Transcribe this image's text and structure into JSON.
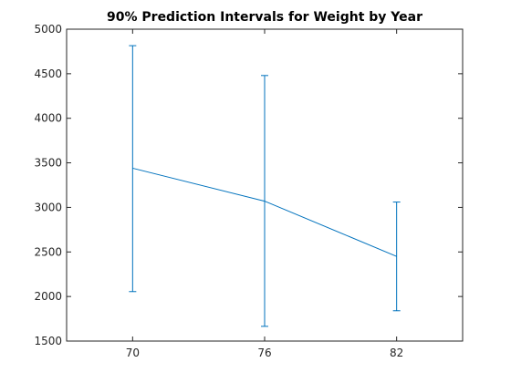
{
  "chart_data": {
    "type": "errorbar",
    "title": "90% Prediction Intervals for Weight by Year",
    "xlabel": "",
    "ylabel": "",
    "x_categories": [
      "70",
      "76",
      "82"
    ],
    "x_values": [
      70,
      76,
      82
    ],
    "xlim": [
      67,
      85
    ],
    "ylim": [
      1500,
      5000
    ],
    "y_ticks": [
      1500,
      2000,
      2500,
      3000,
      3500,
      4000,
      4500,
      5000
    ],
    "series": [
      {
        "values": [
          3440,
          3070,
          2450
        ],
        "lower": [
          2055,
          1665,
          1840
        ],
        "upper": [
          4815,
          4480,
          3060
        ]
      }
    ],
    "grid": false,
    "legend": "none",
    "colors": {
      "series": "#0072BD",
      "axis": "#262626",
      "background": "#ffffff"
    }
  }
}
